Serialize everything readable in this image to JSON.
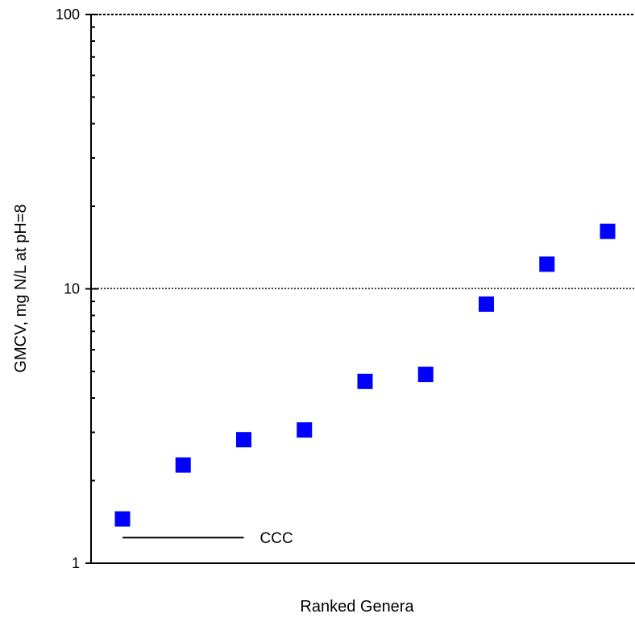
{
  "chart_data": {
    "type": "scatter",
    "title": "",
    "xlabel": "Ranked Genera",
    "ylabel": "GMCV, mg N/L at pH=8",
    "y_scale": "log",
    "ylim": [
      1,
      100
    ],
    "y_ticks": [
      {
        "value": 1,
        "label": "1"
      },
      {
        "value": 10,
        "label": "10"
      },
      {
        "value": 100,
        "label": "100"
      }
    ],
    "x_ticks_shown": false,
    "grid": "dotted horizontal line at 10 and at top boundary",
    "series": [
      {
        "marker": "square",
        "color": "#0000ff",
        "x": [
          1,
          2,
          3,
          4,
          5,
          6,
          7,
          8,
          9
        ],
        "y": [
          1.45,
          2.28,
          2.82,
          3.06,
          4.6,
          4.88,
          8.8,
          12.3,
          16.2
        ]
      }
    ],
    "reference_line": {
      "label": "CCC",
      "value": 1.24,
      "x_from": 1,
      "x_to": 3
    }
  }
}
